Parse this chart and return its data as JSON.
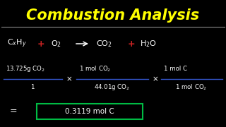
{
  "background_color": "#000000",
  "title": "Combustion Analysis",
  "title_color": "#ffff00",
  "title_fontsize": 15,
  "separator_color": "#888888",
  "text_color": "#ffffff",
  "red_color": "#cc2222",
  "green_color": "#00bb44",
  "blue_color": "#3355cc",
  "result": "0.3119 mol C",
  "fig_width": 3.2,
  "fig_height": 1.8,
  "fig_dpi": 100
}
